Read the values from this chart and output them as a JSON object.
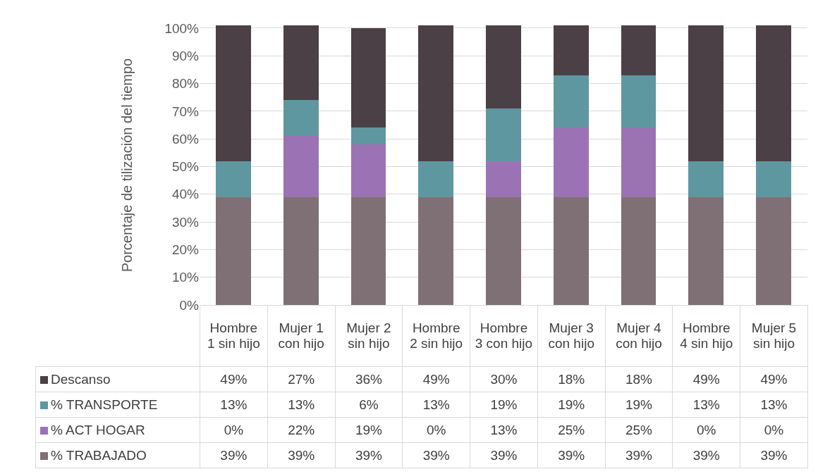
{
  "chart_data": {
    "type": "bar",
    "stacked": true,
    "ylabel": "Porcentaje de tilización del tiempo",
    "categories": [
      "Hombre 1 sin hijo",
      "Mujer 1 con hijo",
      "Mujer 2 sin hijo",
      "Hombre 2 sin hijo",
      "Hombre 3 con hijo",
      "Mujer 3 con hijo",
      "Mujer 4 con hijo",
      "Hombre 4 sin hijo",
      "Mujer 5 sin hijo"
    ],
    "series": [
      {
        "name": "% TRABAJADO",
        "color": "#7f7075",
        "values": [
          39,
          39,
          39,
          39,
          39,
          39,
          39,
          39,
          39
        ],
        "value_labels": [
          "39%",
          "39%",
          "39%",
          "39%",
          "39%",
          "39%",
          "39%",
          "39%",
          "39%"
        ]
      },
      {
        "name": "% ACT HOGAR",
        "color": "#9b73b5",
        "values": [
          0,
          22,
          19,
          0,
          13,
          25,
          25,
          0,
          0
        ],
        "value_labels": [
          "0%",
          "22%",
          "19%",
          "0%",
          "13%",
          "25%",
          "25%",
          "0%",
          "0%"
        ]
      },
      {
        "name": "% TRANSPORTE",
        "color": "#5f97a0",
        "values": [
          13,
          13,
          6,
          13,
          19,
          19,
          19,
          13,
          13
        ],
        "value_labels": [
          "13%",
          "13%",
          "6%",
          "13%",
          "19%",
          "19%",
          "19%",
          "13%",
          "13%"
        ]
      },
      {
        "name": "Descanso",
        "color": "#4b4045",
        "values": [
          49,
          27,
          36,
          49,
          30,
          18,
          18,
          49,
          49
        ],
        "value_labels": [
          "49%",
          "27%",
          "36%",
          "49%",
          "30%",
          "18%",
          "18%",
          "49%",
          "49%"
        ]
      }
    ],
    "ylim": [
      0,
      101
    ],
    "yticks": [
      {
        "value": 0,
        "label": "0%"
      },
      {
        "value": 10,
        "label": "10%"
      },
      {
        "value": 20,
        "label": "20%"
      },
      {
        "value": 30,
        "label": "30%"
      },
      {
        "value": 40,
        "label": "40%"
      },
      {
        "value": 50,
        "label": "50%"
      },
      {
        "value": 60,
        "label": "60%"
      },
      {
        "value": 70,
        "label": "70%"
      },
      {
        "value": 80,
        "label": "80%"
      },
      {
        "value": 90,
        "label": "90%"
      },
      {
        "value": 100,
        "label": "100%"
      }
    ],
    "grid": "y",
    "legend": "bottom"
  }
}
